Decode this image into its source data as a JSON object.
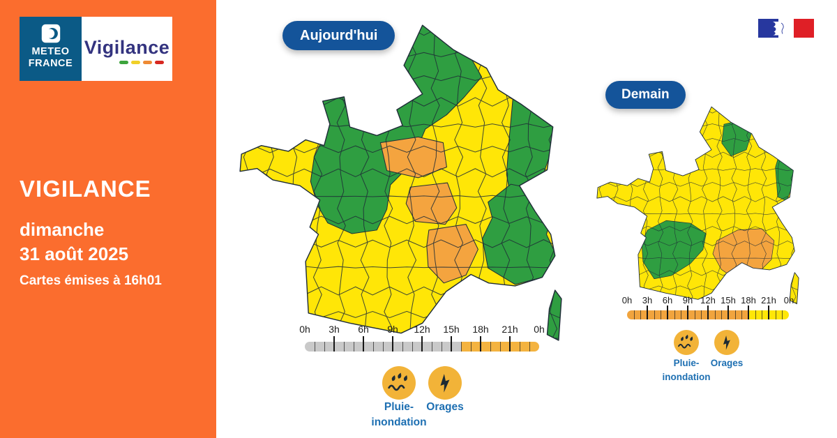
{
  "sidebar": {
    "bg": "#fb6d2e",
    "logo": {
      "brand_top": "METEO",
      "brand_bottom": "FRANCE",
      "brand_bg": "#0b5a86",
      "product": "Vigilance",
      "wordmark_color": "#33337f",
      "dash_colors": [
        "#3da43d",
        "#f0d028",
        "#ee8a34",
        "#d72821"
      ]
    },
    "title": "VIGILANCE",
    "date_line1": "dimanche",
    "date_line2": "31 août 2025",
    "issued": "Cartes émises à 16h01"
  },
  "palette": {
    "green": "#2f9e41",
    "yellow": "#ffe607",
    "orange": "#f4a43f",
    "map_border": "#1f2d38",
    "icon_circle": "#f2b338",
    "icon_glyph": "#1e2a33",
    "badge_bg": "#14549a",
    "label_blue": "#1d6fb2"
  },
  "maps": [
    {
      "id": "today",
      "badge": "Aujourd'hui",
      "zones": {
        "base": "yellow",
        "north": "green",
        "alsace": "green",
        "alps": "green",
        "center_a": "orange",
        "center_b": "orange",
        "center_c": "orange",
        "corsica": "green"
      },
      "timeline": {
        "hours": 24,
        "ticks": [
          "0h",
          "3h",
          "6h",
          "9h",
          "12h",
          "15h",
          "18h",
          "21h",
          "0h"
        ],
        "segments": [
          {
            "from": 0,
            "to": 16,
            "color": "#c9c9c9"
          },
          {
            "from": 16,
            "to": 24,
            "color": "#f4b340"
          }
        ]
      },
      "icons": [
        {
          "name": "pluie-inondation",
          "label_lines": [
            "Pluie-",
            "inondation"
          ]
        },
        {
          "name": "orages",
          "label_lines": [
            "Orages"
          ]
        }
      ]
    },
    {
      "id": "tomorrow",
      "badge": "Demain",
      "zones": {
        "base": "yellow",
        "northeast": "green",
        "alsace": "green",
        "southwest": "green",
        "southeast": "orange",
        "corsica": "yellow"
      },
      "timeline": {
        "hours": 24,
        "ticks": [
          "0h",
          "3h",
          "6h",
          "9h",
          "12h",
          "15h",
          "18h",
          "21h",
          "0h"
        ],
        "segments": [
          {
            "from": 0,
            "to": 18,
            "color": "#f1a43e"
          },
          {
            "from": 18,
            "to": 24,
            "color": "#ffe607"
          }
        ]
      },
      "icons": [
        {
          "name": "pluie-inondation",
          "label_lines": [
            "Pluie-",
            "inondation"
          ]
        },
        {
          "name": "orages",
          "label_lines": [
            "Orages"
          ]
        }
      ]
    }
  ],
  "gov_logo": {
    "blue": "#27379e",
    "white": "#ffffff",
    "red": "#df1f26"
  }
}
